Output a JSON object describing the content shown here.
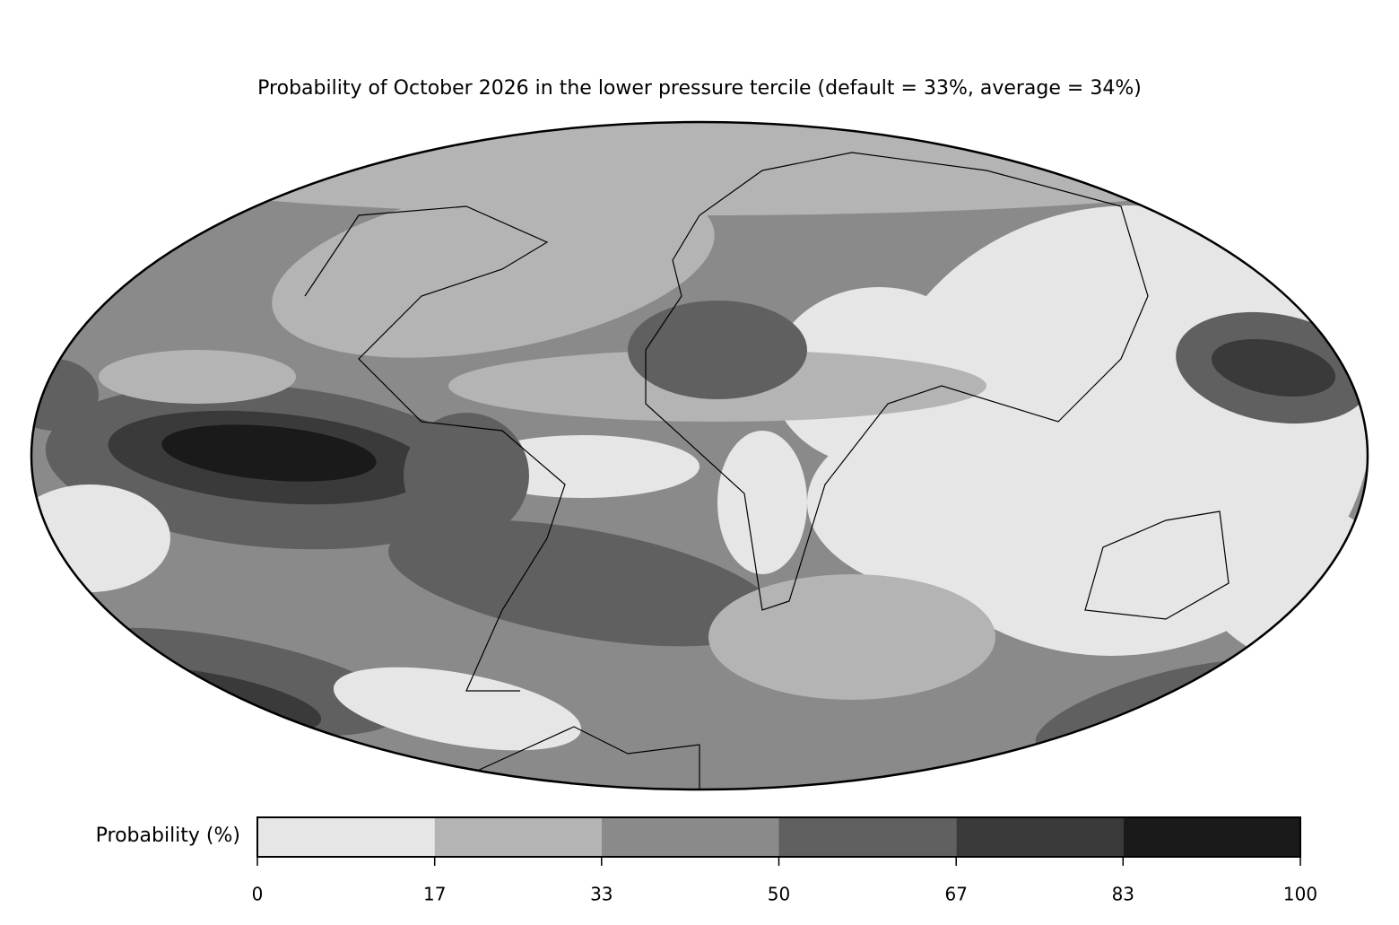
{
  "title": "Probability of October 2026 in the lower pressure tercile (default = 33%, average = 34%)",
  "colorbar": {
    "label": "Probability (%)",
    "lim": [
      0,
      100
    ],
    "ticks": [
      0,
      17,
      33,
      50,
      67,
      83,
      100
    ],
    "colors": [
      "#e6e6e6",
      "#b4b4b4",
      "#8a8a8a",
      "#606060",
      "#3a3a3a",
      "#1a1a1a"
    ]
  }
}
